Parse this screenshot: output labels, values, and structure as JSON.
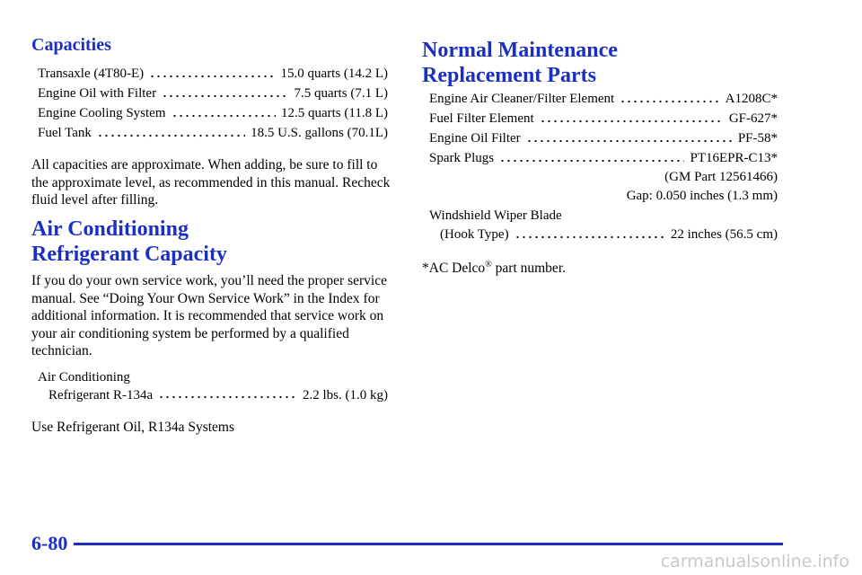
{
  "left": {
    "capacities": {
      "heading": "Capacities",
      "items": [
        {
          "label": "Transaxle (4T80-E)",
          "value": "15.0 quarts (14.2 L)"
        },
        {
          "label": "Engine Oil with Filter",
          "value": "7.5 quarts (7.1 L)"
        },
        {
          "label": "Engine Cooling System",
          "value": "12.5 quarts (11.8 L)"
        },
        {
          "label": "Fuel Tank",
          "value": "18.5 U.S. gallons (70.1L)"
        }
      ],
      "note": "All capacities are approximate. When adding, be sure to fill to the approximate level, as recommended in this manual. Recheck fluid level after filling."
    },
    "ac": {
      "heading_lines": [
        "Air Conditioning",
        "Refrigerant Capacity"
      ],
      "paragraph": "If you do your own service work, you’ll need the proper service manual. See “Doing Your Own Service Work” in the Index for additional information. It is recommended that service work on your air conditioning system be performed by a qualified technician.",
      "item": {
        "label_lines": [
          "Air Conditioning",
          "Refrigerant R-134a"
        ],
        "value": "2.2 lbs. (1.0 kg)"
      },
      "note": "Use Refrigerant Oil, R134a Systems"
    }
  },
  "right": {
    "heading_lines": [
      "Normal Maintenance",
      "Replacement Parts"
    ],
    "items": [
      {
        "label": "Engine Air Cleaner/Filter Element",
        "value": "A1208C*"
      },
      {
        "label": "Fuel Filter Element",
        "value": "GF-627*"
      },
      {
        "label": "Engine Oil Filter",
        "value": "PF-58*"
      },
      {
        "label": "Spark Plugs",
        "value": "PT16EPR-C13*",
        "extra": [
          "(GM Part 12561466)",
          "Gap: 0.050 inches (1.3 mm)"
        ]
      }
    ],
    "wiper": {
      "label_lines": [
        "Windshield Wiper Blade",
        "(Hook Type)"
      ],
      "value": "22 inches (56.5 cm)"
    },
    "footnote": {
      "prefix": "*AC Delco",
      "mark": "®",
      "suffix": "part number."
    }
  },
  "footer": {
    "page": "6-80",
    "watermark": "carmanualsonline.info"
  }
}
